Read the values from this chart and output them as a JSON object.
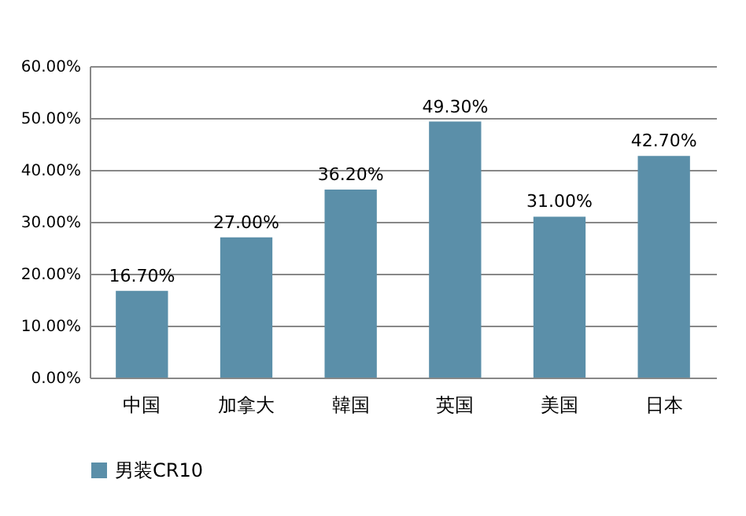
{
  "chart_data": {
    "type": "bar",
    "categories": [
      "中国",
      "加拿大",
      "韓国",
      "英国",
      "美国",
      "日本"
    ],
    "series": [
      {
        "name": "男装CR10",
        "color": "#5b8fa9",
        "values": [
          16.7,
          27.0,
          36.2,
          49.3,
          31.0,
          42.7
        ],
        "value_labels": [
          "16.70%",
          "27.00%",
          "36.20%",
          "49.30%",
          "31.00%",
          "42.70%"
        ]
      }
    ],
    "ylim": [
      0,
      60
    ],
    "yticks": [
      {
        "value": 0,
        "label": "0.00%"
      },
      {
        "value": 10,
        "label": "10.00%"
      },
      {
        "value": 20,
        "label": "20.00%"
      },
      {
        "value": 30,
        "label": "30.00%"
      },
      {
        "value": 40,
        "label": "40.00%"
      },
      {
        "value": 50,
        "label": "50.00%"
      },
      {
        "value": 60,
        "label": "60.00%"
      }
    ],
    "grid": "y",
    "legend": "bottom"
  }
}
